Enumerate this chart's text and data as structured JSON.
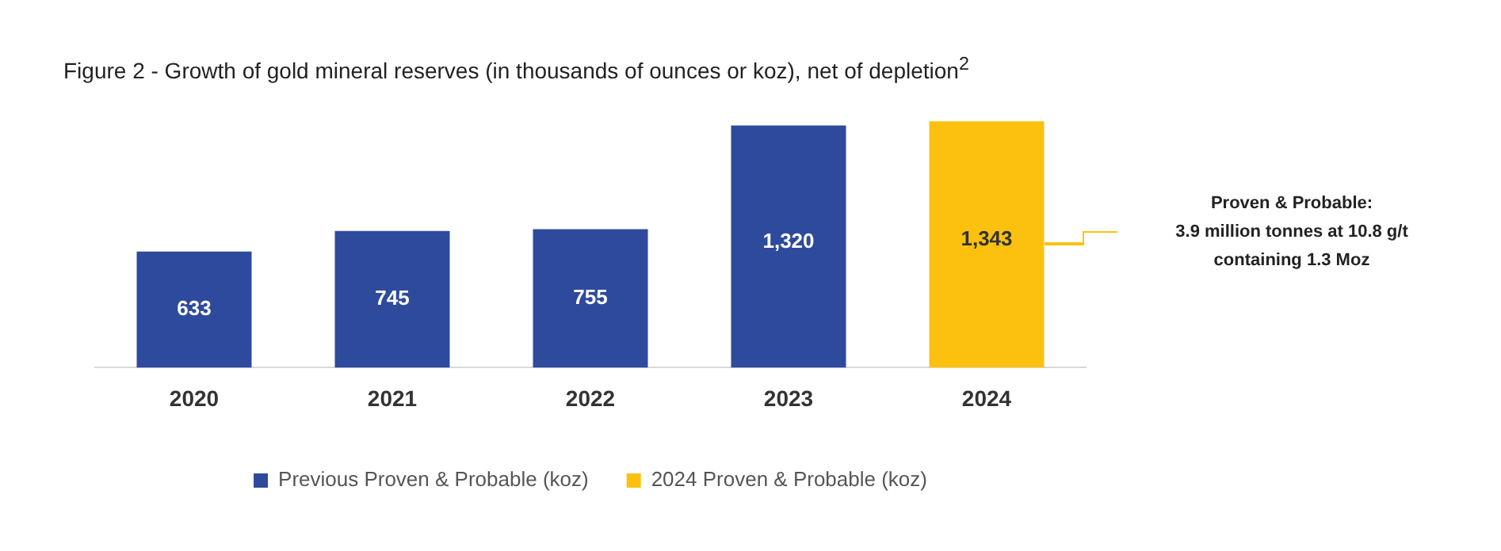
{
  "chart_data": {
    "type": "bar",
    "title": "Figure 2 - Growth of gold mineral reserves (in thousands of ounces or koz), net of depletion$^{2}$",
    "categories": [
      "2020",
      "2021",
      "2022",
      "2023",
      "2024"
    ],
    "series": [
      {
        "name": "Previous Proven & Probable (koz)",
        "color": "#2e4a9c",
        "values": [
          633,
          745,
          755,
          1320,
          null
        ],
        "value_labels": [
          "633",
          "745",
          "755",
          "1,320",
          null
        ]
      },
      {
        "name": "2024 Proven & Probable (koz)",
        "color": "#fcc10f",
        "values": [
          null,
          null,
          null,
          null,
          1343
        ],
        "value_labels": [
          null,
          null,
          null,
          null,
          "1,343"
        ]
      }
    ],
    "grid": false,
    "legend": "bottom",
    "annotations": [
      "Proven & Probable:\n3.9 million tonnes at 10.8 g/t\ncontaining 1.3 Moz"
    ]
  }
}
